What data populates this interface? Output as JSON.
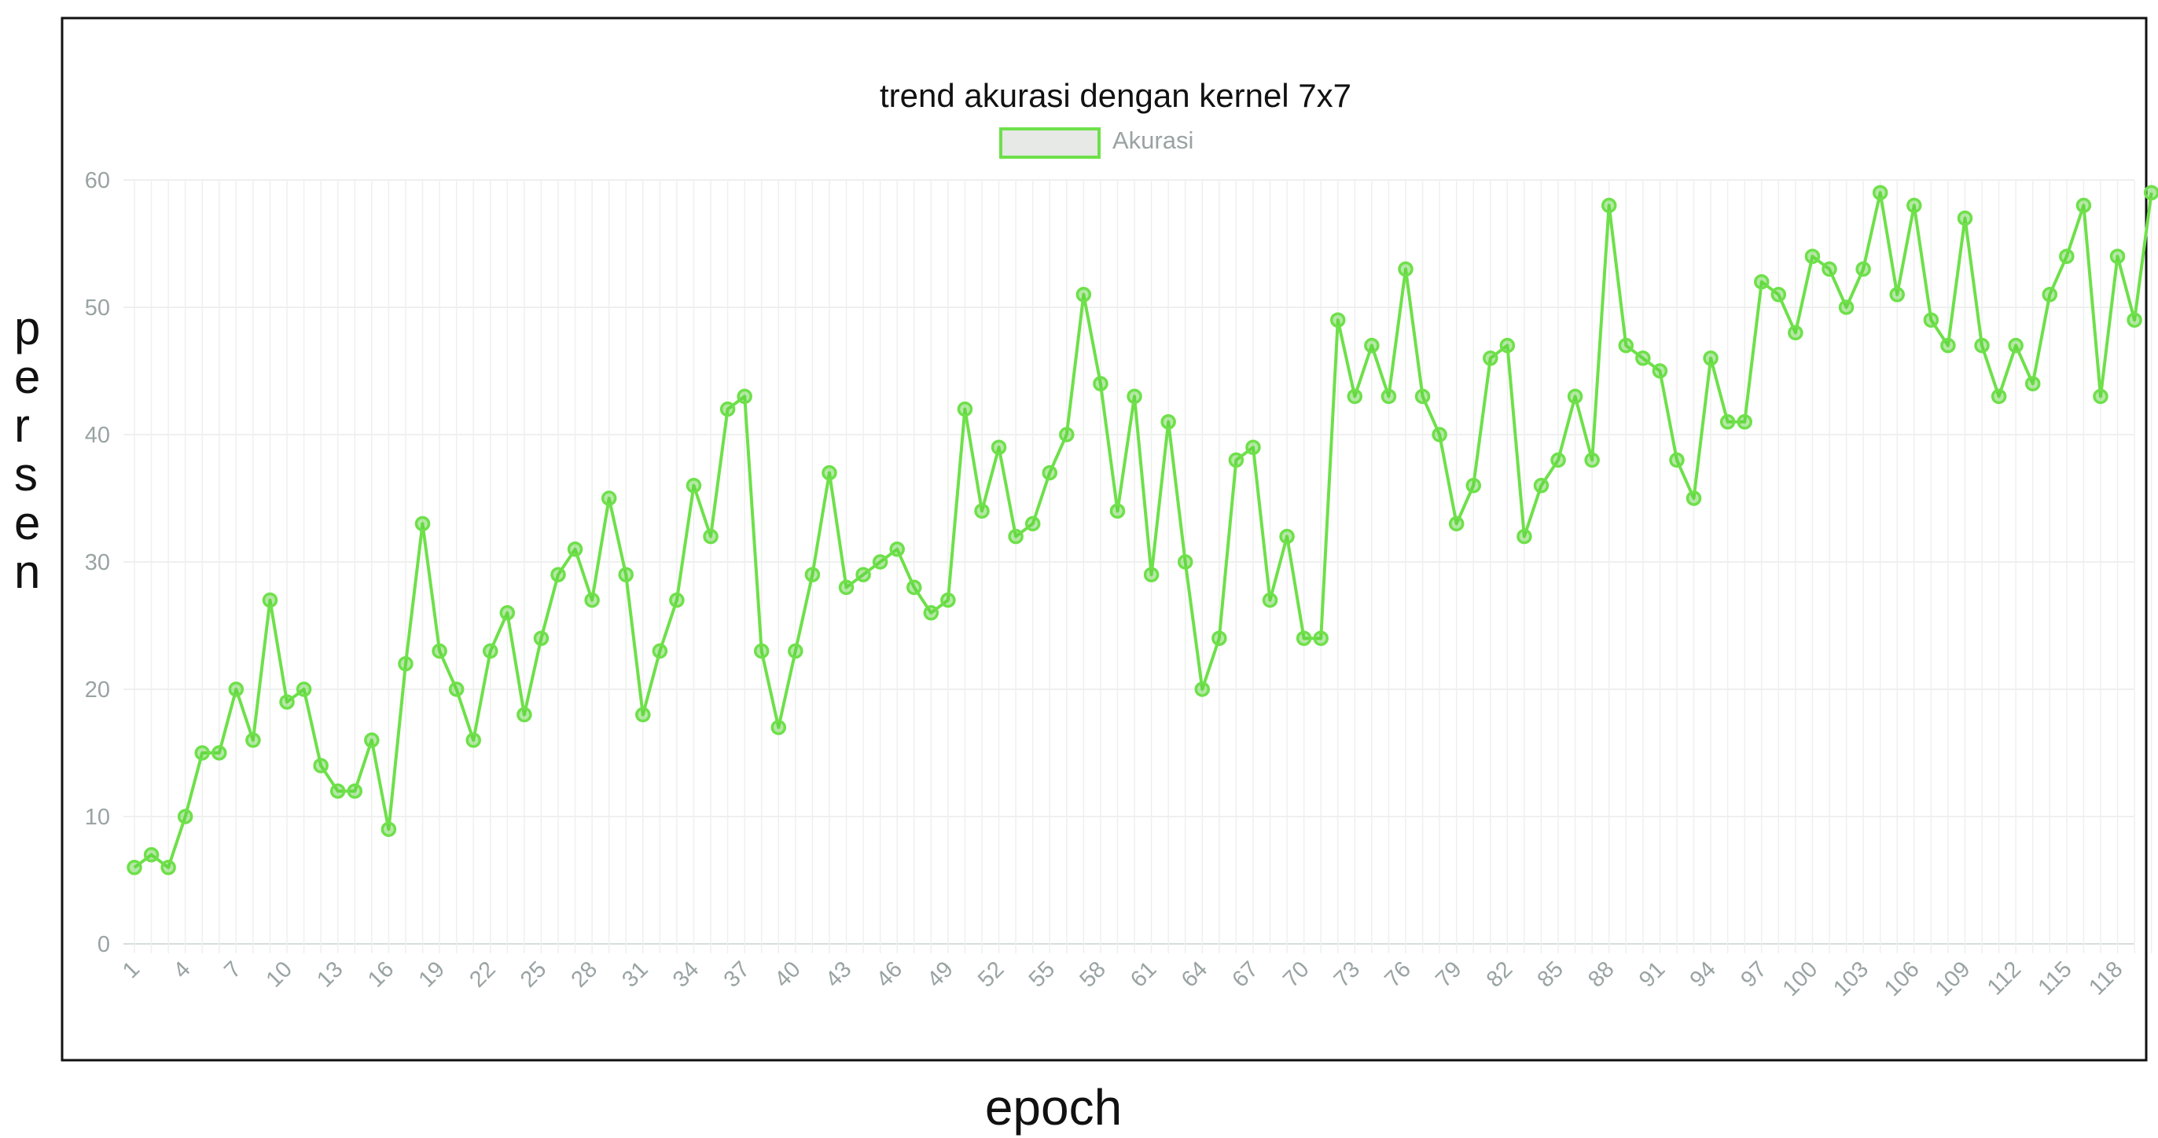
{
  "chart_data": {
    "type": "line",
    "title": "trend akurasi dengan kernel 7x7",
    "xlabel": "epoch",
    "ylabel": "persen",
    "legend": {
      "label": "Akurasi",
      "placement": "top-center"
    },
    "series": [
      {
        "name": "Akurasi",
        "values": [
          6,
          7,
          6,
          10,
          15,
          15,
          20,
          16,
          27,
          19,
          20,
          14,
          12,
          12,
          16,
          9,
          22,
          33,
          23,
          20,
          16,
          23,
          26,
          18,
          24,
          29,
          31,
          27,
          35,
          29,
          18,
          23,
          27,
          36,
          32,
          42,
          43,
          23,
          17,
          23,
          29,
          37,
          28,
          29,
          30,
          31,
          28,
          26,
          27,
          42,
          34,
          39,
          32,
          33,
          37,
          40,
          51,
          44,
          34,
          43,
          29,
          41,
          30,
          20,
          24,
          38,
          39,
          27,
          32,
          24,
          24,
          49,
          43,
          47,
          43,
          53,
          43,
          40,
          33,
          36,
          46,
          47,
          32,
          36,
          38,
          43,
          38,
          58,
          47,
          46,
          45,
          38,
          35,
          46,
          41,
          41,
          52,
          51,
          48,
          54,
          53,
          50,
          53,
          59,
          51,
          58,
          49,
          47,
          57,
          47,
          43,
          47,
          44,
          51,
          54,
          58,
          43,
          54,
          49,
          59
        ]
      }
    ],
    "x": [
      1,
      2,
      3,
      4,
      5,
      6,
      7,
      8,
      9,
      10,
      11,
      12,
      13,
      14,
      15,
      16,
      17,
      18,
      19,
      20,
      21,
      22,
      23,
      24,
      25,
      26,
      27,
      28,
      29,
      30,
      31,
      32,
      33,
      34,
      35,
      36,
      37,
      38,
      39,
      40,
      41,
      42,
      43,
      44,
      45,
      46,
      47,
      48,
      49,
      50,
      51,
      52,
      53,
      54,
      55,
      56,
      57,
      58,
      59,
      60,
      61,
      62,
      63,
      64,
      65,
      66,
      67,
      68,
      69,
      70,
      71,
      72,
      73,
      74,
      75,
      76,
      77,
      78,
      79,
      80,
      81,
      82,
      83,
      84,
      85,
      86,
      87,
      88,
      89,
      90,
      91,
      92,
      93,
      94,
      95,
      96,
      97,
      98,
      99,
      100,
      101,
      102,
      103,
      104,
      105,
      106,
      107,
      108,
      109,
      110,
      111,
      112,
      113,
      114,
      115,
      116,
      117,
      118,
      119,
      120
    ],
    "x_tick_labels": [
      "1",
      "4",
      "7",
      "10",
      "13",
      "16",
      "19",
      "22",
      "25",
      "28",
      "31",
      "34",
      "37",
      "40",
      "43",
      "46",
      "49",
      "52",
      "55",
      "58",
      "61",
      "64",
      "67",
      "70",
      "73",
      "76",
      "79",
      "82",
      "85",
      "88",
      "91",
      "94",
      "97",
      "100",
      "103",
      "106",
      "109",
      "112",
      "115",
      "118"
    ],
    "y_tick_labels": [
      "0",
      "10",
      "20",
      "30",
      "40",
      "50",
      "60"
    ],
    "ylim": [
      0,
      60
    ],
    "grid": true,
    "colors": {
      "line": "#6ee04a",
      "point_fill": "#5ccf3a",
      "legend_fill": "#e6e9e6",
      "grid": "#eef0ee",
      "tick_text": "#9aa3a3",
      "frame": "#111111"
    }
  }
}
